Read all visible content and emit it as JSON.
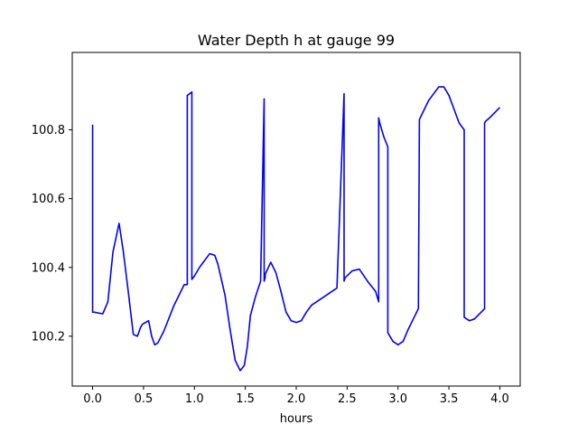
{
  "chart_data": {
    "type": "line",
    "title": "Water Depth h at gauge 99",
    "xlabel": "hours",
    "ylabel": "",
    "xlim": [
      -0.2,
      4.2
    ],
    "ylim": [
      100.055,
      101.025
    ],
    "xticks": [
      0.0,
      0.5,
      1.0,
      1.5,
      2.0,
      2.5,
      3.0,
      3.5,
      4.0
    ],
    "xtick_labels": [
      "0.0",
      "0.5",
      "1.0",
      "1.5",
      "2.0",
      "2.5",
      "3.0",
      "3.5",
      "4.0"
    ],
    "yticks": [
      100.2,
      100.4,
      100.6,
      100.8
    ],
    "ytick_labels": [
      "100.2",
      "100.4",
      "100.6",
      "100.8"
    ],
    "grid": false,
    "series": [
      {
        "color": "#0000ff",
        "x": [
          0.0,
          0.0,
          0.012,
          0.1,
          0.15,
          0.2,
          0.26,
          0.3,
          0.35,
          0.4,
          0.44,
          0.47,
          0.49,
          0.52,
          0.55,
          0.58,
          0.61,
          0.64,
          0.7,
          0.8,
          0.9,
          0.93,
          0.93,
          0.975,
          0.975,
          1.0,
          1.05,
          1.1,
          1.15,
          1.2,
          1.23,
          1.3,
          1.35,
          1.4,
          1.45,
          1.49,
          1.52,
          1.55,
          1.6,
          1.65,
          1.685,
          1.685,
          1.695,
          1.695,
          1.75,
          1.8,
          1.85,
          1.9,
          1.95,
          2.0,
          2.05,
          2.1,
          2.15,
          2.2,
          2.3,
          2.4,
          2.47,
          2.47,
          2.48,
          2.48,
          2.55,
          2.62,
          2.7,
          2.78,
          2.81,
          2.81,
          2.82,
          2.82,
          2.86,
          2.9,
          2.9,
          2.95,
          3.0,
          3.05,
          3.1,
          3.15,
          3.2,
          3.21,
          3.21,
          3.3,
          3.4,
          3.45,
          3.5,
          3.6,
          3.65,
          3.65,
          3.7,
          3.75,
          3.85,
          3.85,
          3.86,
          3.9,
          4.0
        ],
        "y": [
          100.815,
          100.27,
          100.27,
          100.265,
          100.3,
          100.445,
          100.528,
          100.45,
          100.33,
          100.205,
          100.2,
          100.225,
          100.235,
          100.24,
          100.245,
          100.2,
          100.175,
          100.18,
          100.215,
          100.29,
          100.35,
          100.35,
          100.9,
          100.91,
          100.365,
          100.375,
          100.4,
          100.42,
          100.44,
          100.435,
          100.41,
          100.32,
          100.22,
          100.13,
          100.1,
          100.115,
          100.17,
          100.26,
          100.315,
          100.36,
          100.89,
          100.36,
          100.37,
          100.38,
          100.415,
          100.385,
          100.33,
          100.27,
          100.245,
          100.24,
          100.245,
          100.27,
          100.29,
          100.3,
          100.32,
          100.34,
          100.905,
          100.36,
          100.37,
          100.37,
          100.39,
          100.395,
          100.36,
          100.33,
          100.3,
          100.835,
          100.82,
          100.82,
          100.78,
          100.75,
          100.21,
          100.185,
          100.175,
          100.185,
          100.22,
          100.25,
          100.28,
          100.83,
          100.83,
          100.885,
          100.925,
          100.925,
          100.9,
          100.82,
          100.8,
          100.255,
          100.245,
          100.25,
          100.28,
          100.82,
          100.825,
          100.835,
          100.865
        ]
      }
    ]
  }
}
